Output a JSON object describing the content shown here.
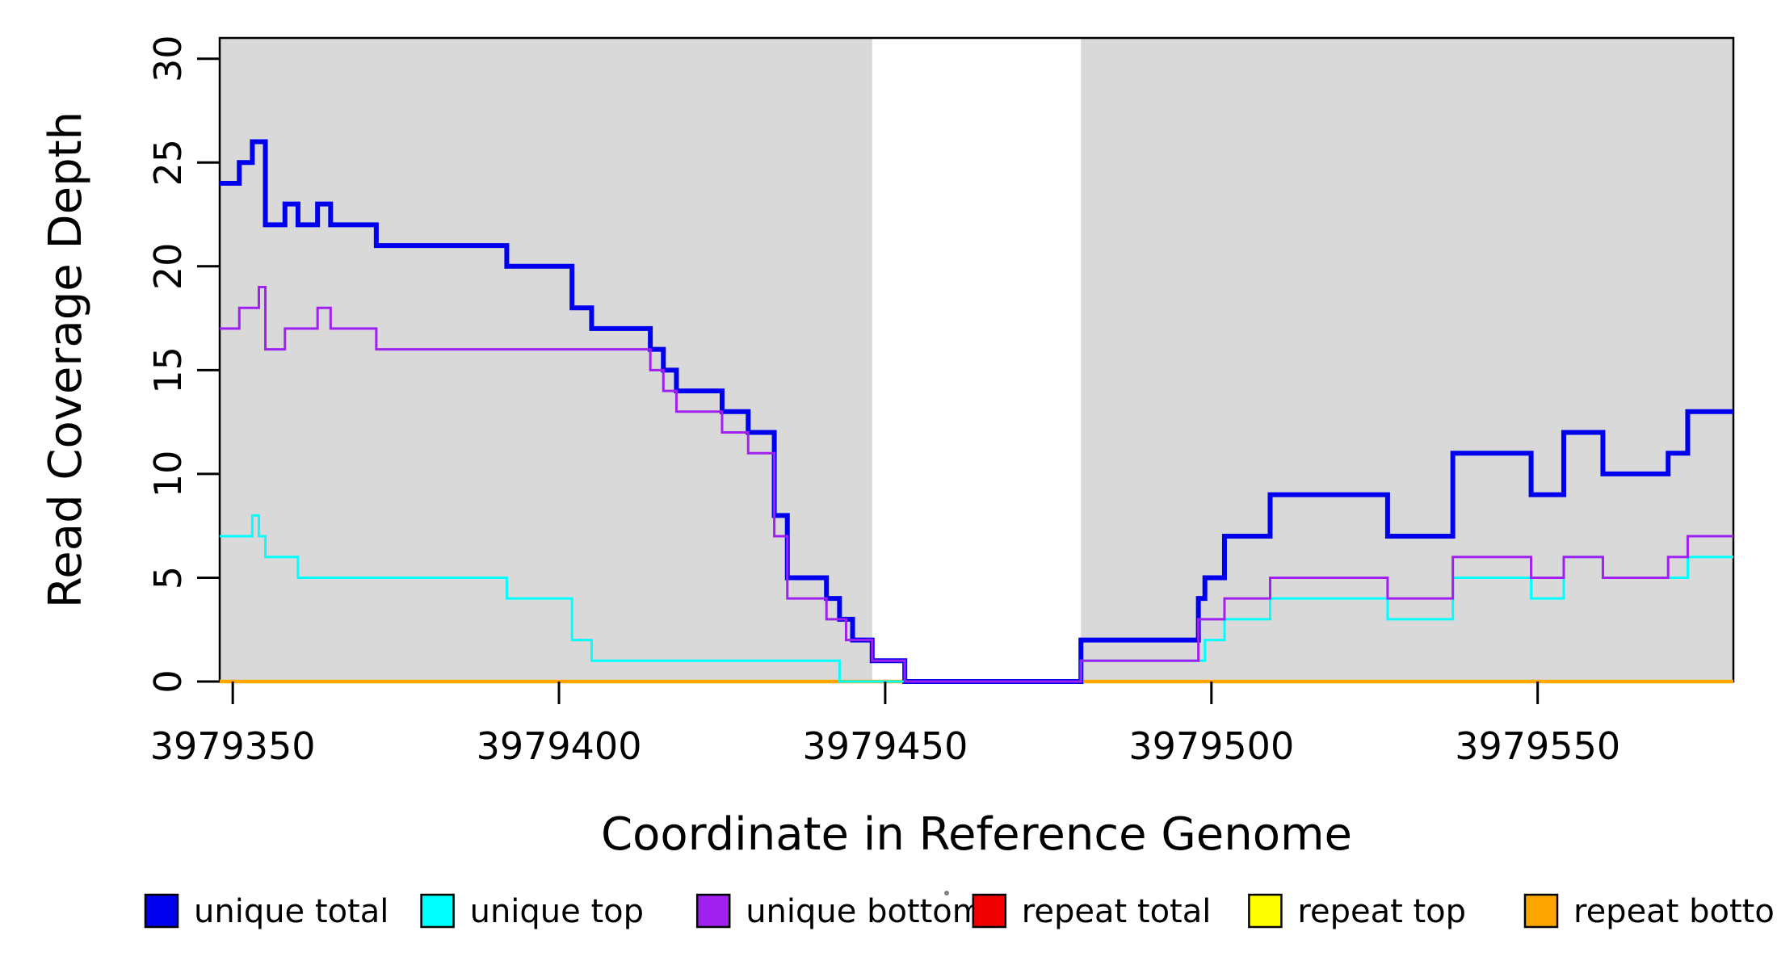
{
  "page": {
    "background": "#FFFFFF",
    "kind": "R-style read coverage step plot"
  },
  "chart_data": {
    "type": "line",
    "subtype": "step",
    "title": "",
    "xlabel": "Coordinate in Reference Genome",
    "ylabel": "Read Coverage Depth",
    "xlim": [
      3979348,
      3979580
    ],
    "ylim": [
      0,
      31
    ],
    "x_ticks": [
      3979350,
      3979400,
      3979450,
      3979500,
      3979550
    ],
    "y_ticks": [
      0,
      5,
      10,
      15,
      20,
      25,
      30
    ],
    "grid": false,
    "panel_background": "#FFFFFF",
    "axis_color": "#000000",
    "shaded_regions": [
      {
        "x0": 3979348,
        "x1": 3979448,
        "color": "#D9D9D9"
      },
      {
        "x0": 3979480,
        "x1": 3979580,
        "color": "#D9D9D9"
      }
    ],
    "series": [
      {
        "name": "repeat total",
        "color": "#EE0000",
        "width": 4,
        "points": [
          [
            3979348,
            0
          ]
        ]
      },
      {
        "name": "repeat top",
        "color": "#FFFF00",
        "width": 4,
        "points": [
          [
            3979348,
            0
          ]
        ]
      },
      {
        "name": "repeat bottom",
        "color": "#FFA500",
        "width": 4.5,
        "points": [
          [
            3979348,
            0
          ]
        ]
      },
      {
        "name": "unique total",
        "color": "#0000EE",
        "width": 6,
        "points": [
          [
            3979348,
            24
          ],
          [
            3979351,
            25
          ],
          [
            3979353,
            26
          ],
          [
            3979355,
            22
          ],
          [
            3979358,
            23
          ],
          [
            3979360,
            22
          ],
          [
            3979363,
            23
          ],
          [
            3979365,
            22
          ],
          [
            3979372,
            21
          ],
          [
            3979392,
            20
          ],
          [
            3979402,
            18
          ],
          [
            3979405,
            17
          ],
          [
            3979414,
            16
          ],
          [
            3979416,
            15
          ],
          [
            3979418,
            14
          ],
          [
            3979425,
            13
          ],
          [
            3979429,
            12
          ],
          [
            3979433,
            8
          ],
          [
            3979435,
            5
          ],
          [
            3979441,
            4
          ],
          [
            3979443,
            3
          ],
          [
            3979445,
            2
          ],
          [
            3979448,
            1
          ],
          [
            3979453,
            0
          ],
          [
            3979480,
            2
          ],
          [
            3979498,
            4
          ],
          [
            3979499,
            5
          ],
          [
            3979502,
            7
          ],
          [
            3979509,
            9
          ],
          [
            3979527,
            7
          ],
          [
            3979537,
            11
          ],
          [
            3979549,
            9
          ],
          [
            3979554,
            12
          ],
          [
            3979560,
            10
          ],
          [
            3979570,
            11
          ],
          [
            3979573,
            13
          ]
        ]
      },
      {
        "name": "unique top",
        "color": "#00FFFF",
        "width": 3,
        "points": [
          [
            3979348,
            7
          ],
          [
            3979353,
            8
          ],
          [
            3979354,
            7
          ],
          [
            3979355,
            6
          ],
          [
            3979360,
            5
          ],
          [
            3979392,
            4
          ],
          [
            3979402,
            2
          ],
          [
            3979405,
            1
          ],
          [
            3979443,
            0
          ],
          [
            3979480,
            1
          ],
          [
            3979499,
            2
          ],
          [
            3979502,
            3
          ],
          [
            3979509,
            4
          ],
          [
            3979527,
            3
          ],
          [
            3979537,
            5
          ],
          [
            3979549,
            4
          ],
          [
            3979554,
            6
          ],
          [
            3979560,
            5
          ],
          [
            3979573,
            6
          ]
        ]
      },
      {
        "name": "unique bottom",
        "color": "#A020F0",
        "width": 3,
        "points": [
          [
            3979348,
            17
          ],
          [
            3979351,
            18
          ],
          [
            3979354,
            19
          ],
          [
            3979355,
            16
          ],
          [
            3979358,
            17
          ],
          [
            3979363,
            18
          ],
          [
            3979365,
            17
          ],
          [
            3979372,
            16
          ],
          [
            3979414,
            15
          ],
          [
            3979416,
            14
          ],
          [
            3979418,
            13
          ],
          [
            3979425,
            12
          ],
          [
            3979429,
            11
          ],
          [
            3979433,
            7
          ],
          [
            3979435,
            4
          ],
          [
            3979441,
            3
          ],
          [
            3979444,
            2
          ],
          [
            3979448,
            1
          ],
          [
            3979453,
            0
          ],
          [
            3979480,
            1
          ],
          [
            3979498,
            3
          ],
          [
            3979502,
            4
          ],
          [
            3979509,
            5
          ],
          [
            3979527,
            4
          ],
          [
            3979537,
            6
          ],
          [
            3979549,
            5
          ],
          [
            3979554,
            6
          ],
          [
            3979560,
            5
          ],
          [
            3979570,
            6
          ],
          [
            3979573,
            7
          ]
        ]
      }
    ],
    "legend": {
      "position": "bottom-horizontal",
      "items": [
        {
          "label": "unique total",
          "color": "#0000EE"
        },
        {
          "label": "unique top",
          "color": "#00FFFF"
        },
        {
          "label": "unique bottom",
          "color": "#A020F0"
        },
        {
          "label": "repeat total",
          "color": "#EE0000"
        },
        {
          "label": "repeat top",
          "color": "#FFFF00"
        },
        {
          "label": "repeat bottom",
          "color": "#FFA500"
        }
      ]
    }
  }
}
